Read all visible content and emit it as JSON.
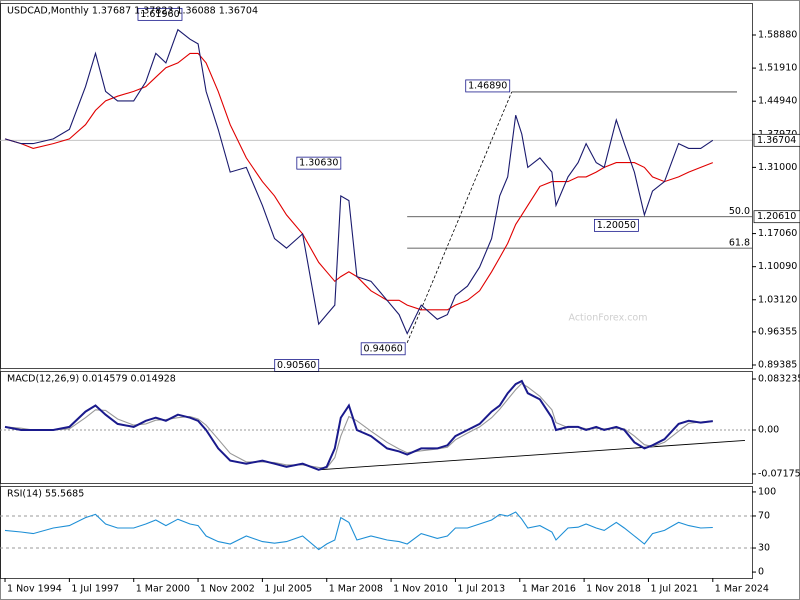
{
  "chart_data": [
    {
      "type": "line",
      "title": "USDCAD,Monthly 1.37687 1.37823 1.36088 1.36704",
      "watermark": "ActionForex.com",
      "x": [
        0,
        8,
        14,
        24,
        32,
        40,
        45,
        50,
        56,
        64,
        70,
        75,
        80,
        86,
        92,
        96,
        100,
        106,
        112,
        120,
        128,
        134,
        140,
        148,
        156,
        160,
        164,
        167,
        171,
        175,
        182,
        190,
        196,
        200,
        207,
        215,
        220,
        224,
        230,
        236,
        242,
        246,
        250,
        254,
        257,
        260,
        266,
        272,
        274,
        280,
        285,
        289,
        294,
        298,
        304,
        308,
        313,
        318,
        322,
        328,
        335,
        340,
        346,
        352
      ],
      "xlim": [
        -2.5,
        371.5
      ],
      "ylim": [
        0.8875,
        1.6562
      ],
      "yticks": [
        {
          "value": 1.5888,
          "label": "1.58880"
        },
        {
          "value": 1.5191,
          "label": "1.51910"
        },
        {
          "value": 1.4494,
          "label": "1.44940"
        },
        {
          "value": 1.3797,
          "label": "1.37970"
        },
        {
          "value": 1.31,
          "label": "1.31000"
        },
        {
          "value": 1.1706,
          "label": "1.17060"
        },
        {
          "value": 1.1009,
          "label": "1.10090"
        },
        {
          "value": 1.0312,
          "label": "1.03120"
        },
        {
          "value": 0.96355,
          "label": "0.96355"
        },
        {
          "value": 0.89385,
          "label": "0.89385"
        }
      ],
      "series": [
        {
          "color": "#1a1a6e",
          "values": [
            1.37,
            1.36,
            1.36,
            1.37,
            1.39,
            1.48,
            1.55,
            1.47,
            1.45,
            1.45,
            1.49,
            1.55,
            1.53,
            1.6,
            1.58,
            1.57,
            1.47,
            1.39,
            1.3,
            1.31,
            1.23,
            1.16,
            1.14,
            1.17,
            0.98,
            1.0,
            1.02,
            1.25,
            1.24,
            1.08,
            1.07,
            1.03,
            1.0,
            0.96,
            1.02,
            0.99,
            1.0,
            1.04,
            1.06,
            1.1,
            1.16,
            1.25,
            1.29,
            1.42,
            1.38,
            1.31,
            1.33,
            1.3,
            1.23,
            1.29,
            1.32,
            1.36,
            1.32,
            1.31,
            1.41,
            1.36,
            1.3,
            1.21,
            1.26,
            1.28,
            1.36,
            1.35,
            1.35,
            1.36704
          ]
        },
        {
          "color": "#e00000",
          "values": [
            1.37,
            1.36,
            1.35,
            1.36,
            1.37,
            1.4,
            1.43,
            1.45,
            1.46,
            1.47,
            1.48,
            1.5,
            1.52,
            1.53,
            1.55,
            1.55,
            1.53,
            1.47,
            1.4,
            1.33,
            1.28,
            1.25,
            1.21,
            1.17,
            1.11,
            1.09,
            1.07,
            1.08,
            1.09,
            1.08,
            1.05,
            1.03,
            1.03,
            1.02,
            1.01,
            1.01,
            1.01,
            1.02,
            1.03,
            1.05,
            1.09,
            1.12,
            1.15,
            1.19,
            1.21,
            1.23,
            1.27,
            1.28,
            1.28,
            1.28,
            1.29,
            1.29,
            1.3,
            1.31,
            1.32,
            1.32,
            1.32,
            1.31,
            1.29,
            1.28,
            1.29,
            1.3,
            1.31,
            1.32
          ]
        }
      ],
      "annotations": [
        {
          "label": "1.61960",
          "value": 1.6196,
          "x": 89
        },
        {
          "label": "1.30630",
          "value": 1.3063,
          "x": 168
        },
        {
          "label": "0.90560",
          "value": 0.9056,
          "x": 157
        },
        {
          "label": "0.94060",
          "value": 0.9406,
          "x": 200
        },
        {
          "label": "1.46890",
          "value": 1.4689,
          "x": 252
        },
        {
          "label": "1.20050",
          "value": 1.2005,
          "x": 316
        }
      ],
      "levels": [
        {
          "label": "50.0",
          "value": 1.2061,
          "value_label": "1.20610"
        },
        {
          "label": "61.8",
          "value": 1.14
        }
      ],
      "last_price": {
        "value": 1.36704,
        "label": "1.36704"
      }
    },
    {
      "type": "line",
      "title": "MACD(12,26,9) 0.014579 0.014928",
      "x": [
        0,
        8,
        14,
        24,
        32,
        40,
        45,
        50,
        56,
        64,
        70,
        75,
        80,
        86,
        92,
        96,
        100,
        106,
        112,
        120,
        128,
        134,
        140,
        148,
        156,
        160,
        164,
        167,
        171,
        175,
        182,
        190,
        196,
        200,
        207,
        215,
        220,
        224,
        230,
        236,
        242,
        246,
        250,
        254,
        257,
        260,
        266,
        272,
        274,
        280,
        285,
        289,
        294,
        298,
        304,
        308,
        313,
        318,
        322,
        328,
        335,
        340,
        346,
        352
      ],
      "xlim": [
        -2.5,
        371.5
      ],
      "ylim": [
        -0.0865,
        0.0963
      ],
      "yticks": [
        0.083235,
        {
          "value": 0,
          "label": "0.00"
        },
        -0.071752
      ],
      "series": [
        {
          "color": "#1a1a8c",
          "values": [
            0.005,
            0,
            0,
            0,
            0.005,
            0.03,
            0.04,
            0.025,
            0.01,
            0.005,
            0.015,
            0.02,
            0.015,
            0.025,
            0.02,
            0.015,
            0,
            -0.03,
            -0.05,
            -0.055,
            -0.05,
            -0.055,
            -0.06,
            -0.055,
            -0.065,
            -0.06,
            -0.03,
            0.02,
            0.04,
            0,
            -0.01,
            -0.03,
            -0.035,
            -0.04,
            -0.03,
            -0.03,
            -0.025,
            -0.01,
            0,
            0.01,
            0.03,
            0.04,
            0.06,
            0.075,
            0.08,
            0.06,
            0.05,
            0.02,
            0,
            0.005,
            0.005,
            0,
            0.005,
            0,
            0.005,
            0,
            -0.02,
            -0.03,
            -0.025,
            -0.015,
            0.01,
            0.015,
            0.012,
            0.014579
          ]
        },
        {
          "color": "#999999",
          "values": [
            0.005,
            0.003,
            0,
            0,
            0.002,
            0.02,
            0.033,
            0.032,
            0.018,
            0.008,
            0.01,
            0.016,
            0.017,
            0.02,
            0.022,
            0.018,
            0.008,
            -0.015,
            -0.038,
            -0.052,
            -0.052,
            -0.053,
            -0.057,
            -0.057,
            -0.061,
            -0.062,
            -0.045,
            -0.01,
            0.022,
            0.015,
            -0.002,
            -0.02,
            -0.031,
            -0.037,
            -0.034,
            -0.031,
            -0.028,
            -0.016,
            -0.005,
            0.005,
            0.02,
            0.034,
            0.05,
            0.066,
            0.076,
            0.07,
            0.055,
            0.033,
            0.012,
            0.004,
            0.005,
            0.002,
            0.003,
            0.002,
            0.003,
            0.002,
            -0.01,
            -0.024,
            -0.027,
            -0.02,
            -0.002,
            0.011,
            0.013,
            0.014928
          ]
        }
      ],
      "trendline": [
        {
          "x": 156,
          "value": -0.065
        },
        {
          "x": 368,
          "value": -0.017
        }
      ]
    },
    {
      "type": "line",
      "title": "RSI(14) 55.5685",
      "x": [
        0,
        8,
        14,
        24,
        32,
        40,
        45,
        50,
        56,
        64,
        70,
        75,
        80,
        86,
        92,
        96,
        100,
        106,
        112,
        120,
        128,
        134,
        140,
        148,
        156,
        160,
        164,
        167,
        171,
        175,
        182,
        190,
        196,
        200,
        207,
        215,
        220,
        224,
        230,
        236,
        242,
        246,
        250,
        254,
        257,
        260,
        266,
        272,
        274,
        280,
        285,
        289,
        294,
        298,
        304,
        308,
        313,
        318,
        322,
        328,
        335,
        340,
        346,
        352
      ],
      "xlim": [
        -2.5,
        371.5
      ],
      "ylim": [
        -7.4,
        107.4
      ],
      "yticks": [
        100,
        70,
        30,
        0
      ],
      "levels": [
        70,
        30
      ],
      "xticks": [
        {
          "value": 0,
          "label": "1 Nov 1994"
        },
        {
          "value": 32,
          "label": "1 Jul 1997"
        },
        {
          "value": 64,
          "label": "1 Mar 2000"
        },
        {
          "value": 96,
          "label": "1 Nov 2002"
        },
        {
          "value": 128,
          "label": "1 Jul 2005"
        },
        {
          "value": 160,
          "label": "1 Mar 2008"
        },
        {
          "value": 192,
          "label": "1 Nov 2010"
        },
        {
          "value": 224,
          "label": "1 Jul 2013"
        },
        {
          "value": 256,
          "label": "1 Mar 2016"
        },
        {
          "value": 288,
          "label": "1 Nov 2018"
        },
        {
          "value": 320,
          "label": "1 Jul 2021"
        },
        {
          "value": 352,
          "label": "1 Mar 2024"
        }
      ],
      "series": [
        {
          "color": "#1e8fd6",
          "values": [
            52,
            50,
            48,
            55,
            58,
            68,
            72,
            60,
            55,
            55,
            60,
            65,
            58,
            66,
            60,
            58,
            45,
            38,
            35,
            45,
            38,
            36,
            38,
            45,
            28,
            35,
            40,
            68,
            62,
            40,
            45,
            40,
            38,
            35,
            48,
            42,
            45,
            55,
            55,
            60,
            65,
            72,
            70,
            75,
            66,
            55,
            58,
            50,
            40,
            55,
            56,
            60,
            55,
            52,
            62,
            55,
            45,
            35,
            48,
            52,
            62,
            58,
            55,
            55.5685
          ]
        }
      ]
    }
  ]
}
